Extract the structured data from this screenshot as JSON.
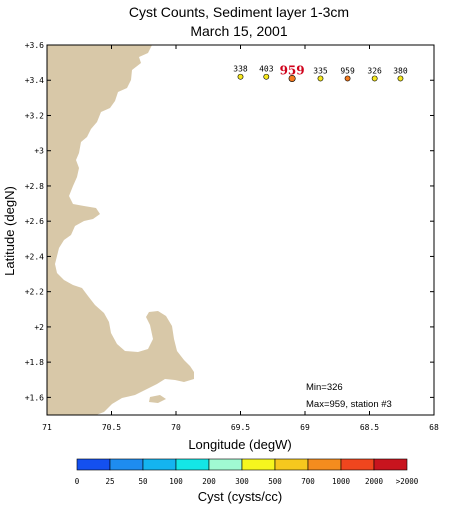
{
  "chart_data": {
    "type": "scatter",
    "title": "Cyst Counts, Sediment layer 1-3cm",
    "subtitle": "March 15, 2001",
    "xlabel": "Longitude (degW)",
    "ylabel": "Latitude (degN)",
    "xlim": [
      71,
      68
    ],
    "ylim": [
      41.5,
      43.6
    ],
    "x_ticks": [
      {
        "value": 71,
        "label": "71"
      },
      {
        "value": 70.5,
        "label": "70.5"
      },
      {
        "value": 70,
        "label": "70"
      },
      {
        "value": 69.5,
        "label": "69.5"
      },
      {
        "value": 69,
        "label": "69"
      },
      {
        "value": 68.5,
        "label": "68.5"
      },
      {
        "value": 68,
        "label": "68"
      }
    ],
    "y_ticks": [
      {
        "value": 43.6,
        "label": "+3.6"
      },
      {
        "value": 43.4,
        "label": "+3.4"
      },
      {
        "value": 43.2,
        "label": "+3.2"
      },
      {
        "value": 43.0,
        "label": "+3"
      },
      {
        "value": 42.8,
        "label": "+2.8"
      },
      {
        "value": 42.6,
        "label": "+2.6"
      },
      {
        "value": 42.4,
        "label": "+2.4"
      },
      {
        "value": 42.2,
        "label": "+2.2"
      },
      {
        "value": 42.0,
        "label": "+2"
      },
      {
        "value": 41.8,
        "label": "+1.8"
      },
      {
        "value": 41.6,
        "label": "+1.6"
      }
    ],
    "points": [
      {
        "lon": 69.5,
        "lat": 43.42,
        "value": 338,
        "label": "338",
        "color": "#f6e81e",
        "highlight": false
      },
      {
        "lon": 69.3,
        "lat": 43.42,
        "value": 403,
        "label": "403",
        "color": "#f6e81e",
        "highlight": false
      },
      {
        "lon": 69.1,
        "lat": 43.41,
        "value": 959,
        "label": "959",
        "color": "#f47a1f",
        "highlight": true
      },
      {
        "lon": 68.88,
        "lat": 43.41,
        "value": 335,
        "label": "335",
        "color": "#f6e81e",
        "highlight": false
      },
      {
        "lon": 68.67,
        "lat": 43.41,
        "value": 959,
        "label": "959",
        "color": "#f47a1f",
        "highlight": false
      },
      {
        "lon": 68.46,
        "lat": 43.41,
        "value": 326,
        "label": "326",
        "color": "#f6e81e",
        "highlight": false
      },
      {
        "lon": 68.26,
        "lat": 43.41,
        "value": 380,
        "label": "380",
        "color": "#f6e81e",
        "highlight": false
      }
    ],
    "annotations": [
      "Min=326",
      "Max=959, station #3"
    ],
    "land_color": "#d8c8a8",
    "colorbar": {
      "label": "Cyst (cysts/cc)",
      "tick_labels": [
        "0",
        "25",
        "50",
        "100",
        "200",
        "300",
        "500",
        "700",
        "1000",
        "2000",
        ">2000"
      ],
      "colors": [
        "#1450f0",
        "#1e8cf0",
        "#14b4f0",
        "#14e6e6",
        "#a0fad2",
        "#f6f61e",
        "#f6c81e",
        "#f48c1e",
        "#f0461e",
        "#c8141e"
      ]
    },
    "grid": false
  }
}
